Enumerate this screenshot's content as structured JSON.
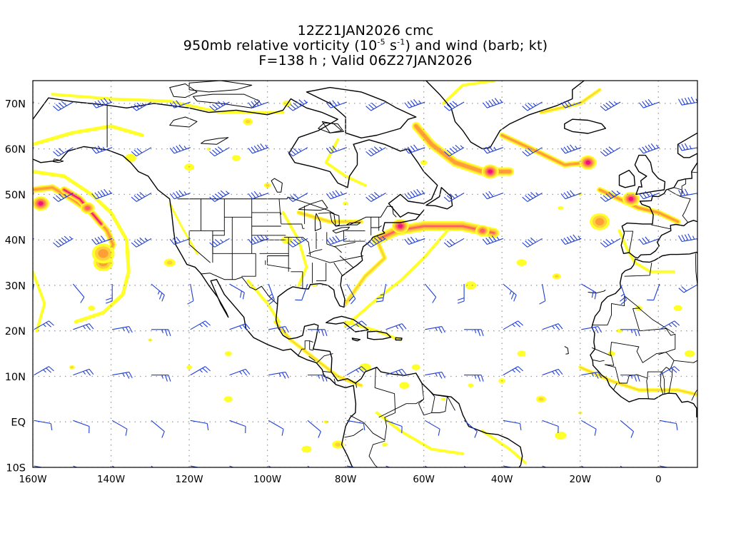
{
  "title": {
    "line1": "12Z21JAN2026 cmc",
    "line2_pre": "950mb relative vorticity (10",
    "line2_exp1": "-5",
    "line2_mid": " s",
    "line2_exp2": "-1",
    "line2_post": ") and wind (barb; kt)",
    "line3": "F=138 h ; Valid 06Z27JAN2026"
  },
  "map": {
    "lon_range": [
      -160,
      10
    ],
    "lat_range": [
      -10,
      75
    ],
    "lon_ticks": [
      {
        "value": -160,
        "label": "160W"
      },
      {
        "value": -140,
        "label": "140W"
      },
      {
        "value": -120,
        "label": "120W"
      },
      {
        "value": -100,
        "label": "100W"
      },
      {
        "value": -80,
        "label": "80W"
      },
      {
        "value": -60,
        "label": "60W"
      },
      {
        "value": -40,
        "label": "40W"
      },
      {
        "value": -20,
        "label": "20W"
      },
      {
        "value": 0,
        "label": "0"
      }
    ],
    "lat_ticks": [
      {
        "value": 70,
        "label": "70N"
      },
      {
        "value": 60,
        "label": "60N"
      },
      {
        "value": 50,
        "label": "50N"
      },
      {
        "value": 40,
        "label": "40N"
      },
      {
        "value": 30,
        "label": "30N"
      },
      {
        "value": 20,
        "label": "20N"
      },
      {
        "value": 10,
        "label": "10N"
      },
      {
        "value": 0,
        "label": "EQ"
      },
      {
        "value": -10,
        "label": "10S"
      }
    ],
    "colors": {
      "level1": "#ffff2a",
      "level2": "#ffd23c",
      "level3": "#ff9e37",
      "level4": "#ff5a6e",
      "level5": "#f0147a",
      "coast": "#000000",
      "barb": "#1f3fd6",
      "grid": "#9a9a9a"
    },
    "vorticity_features": [
      {
        "name": "north-pacific-vortex",
        "lon": -158,
        "lat": 48,
        "level": 5
      },
      {
        "name": "gulf-of-alaska-band",
        "lon": -146,
        "lat": 47,
        "level": 4
      },
      {
        "name": "pacific-cyclone",
        "lon": -142,
        "lat": 35,
        "level": 3
      },
      {
        "name": "new-england-low",
        "lon": -66,
        "lat": 43,
        "level": 5
      },
      {
        "name": "north-atlantic-low",
        "lon": -43,
        "lat": 55,
        "level": 5
      },
      {
        "name": "iceland-low",
        "lon": -18,
        "lat": 57,
        "level": 5
      },
      {
        "name": "western-europe-low",
        "lon": -7,
        "lat": 49,
        "level": 5
      },
      {
        "name": "bay-of-biscay",
        "lon": -15,
        "lat": 44,
        "level": 3
      },
      {
        "name": "mid-atlantic-band",
        "lon": -45,
        "lat": 42,
        "level": 4
      }
    ]
  }
}
